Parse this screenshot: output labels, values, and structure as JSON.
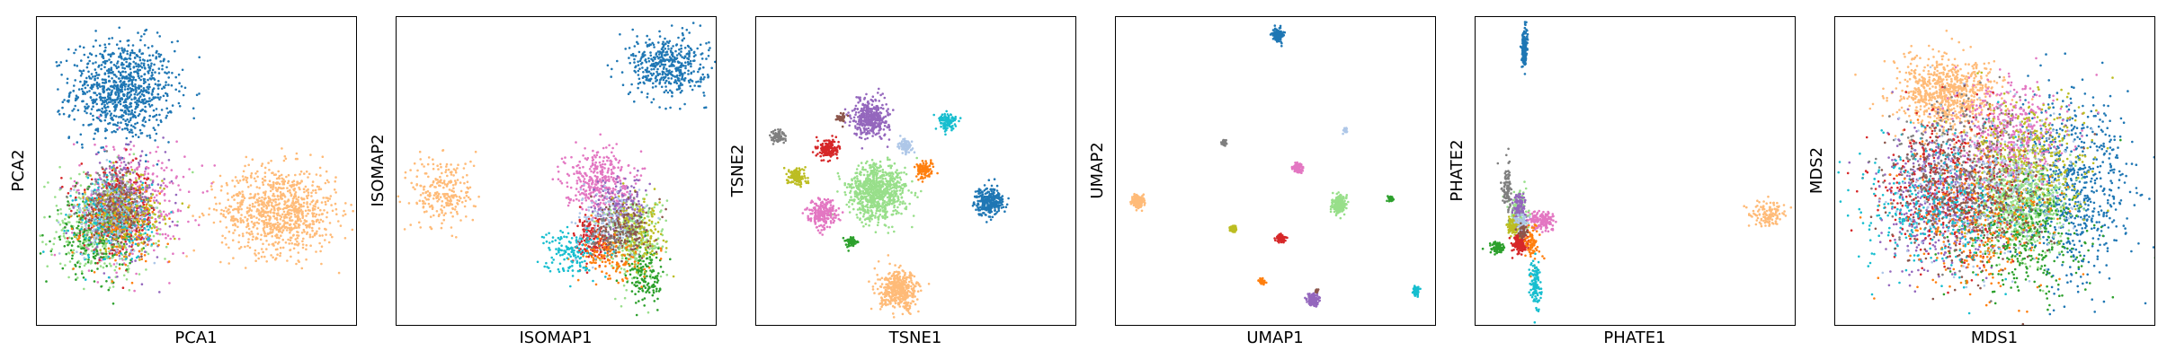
{
  "chart_data": [
    {
      "type": "scatter",
      "xlabel": "PCA1",
      "ylabel": "PCA2",
      "grid": false,
      "xticks": "none",
      "yticks": "none",
      "clusters": [
        {
          "color": "#1f77b4",
          "x": 0.27,
          "y": 0.76,
          "sx": 0.08,
          "sy": 0.08,
          "n": 900
        },
        {
          "color": "#ffbb78",
          "x": 0.76,
          "y": 0.37,
          "sx": 0.09,
          "sy": 0.07,
          "n": 900
        },
        {
          "color": "#e377c2",
          "x": 0.3,
          "y": 0.4,
          "sx": 0.09,
          "sy": 0.1,
          "n": 350
        },
        {
          "color": "#98df8a",
          "x": 0.2,
          "y": 0.32,
          "sx": 0.08,
          "sy": 0.08,
          "n": 450
        },
        {
          "color": "#9467bd",
          "x": 0.27,
          "y": 0.38,
          "sx": 0.07,
          "sy": 0.08,
          "n": 300
        },
        {
          "color": "#d62728",
          "x": 0.26,
          "y": 0.36,
          "sx": 0.06,
          "sy": 0.07,
          "n": 250
        },
        {
          "color": "#2ca02c",
          "x": 0.18,
          "y": 0.28,
          "sx": 0.06,
          "sy": 0.06,
          "n": 200
        },
        {
          "color": "#ff7f0e",
          "x": 0.26,
          "y": 0.33,
          "sx": 0.06,
          "sy": 0.06,
          "n": 200
        },
        {
          "color": "#17becf",
          "x": 0.24,
          "y": 0.34,
          "sx": 0.06,
          "sy": 0.07,
          "n": 200
        },
        {
          "color": "#bcbd22",
          "x": 0.28,
          "y": 0.36,
          "sx": 0.06,
          "sy": 0.06,
          "n": 200
        },
        {
          "color": "#7f7f7f",
          "x": 0.25,
          "y": 0.4,
          "sx": 0.05,
          "sy": 0.06,
          "n": 150
        },
        {
          "color": "#aec7e8",
          "x": 0.23,
          "y": 0.35,
          "sx": 0.06,
          "sy": 0.06,
          "n": 150
        },
        {
          "color": "#8c564b",
          "x": 0.25,
          "y": 0.37,
          "sx": 0.05,
          "sy": 0.05,
          "n": 120
        }
      ]
    },
    {
      "type": "scatter",
      "xlabel": "ISOMAP1",
      "ylabel": "ISOMAP2",
      "grid": false,
      "xticks": "none",
      "yticks": "none",
      "clusters": [
        {
          "color": "#1f77b4",
          "x": 0.85,
          "y": 0.84,
          "sx": 0.06,
          "sy": 0.05,
          "n": 450
        },
        {
          "color": "#ffbb78",
          "x": 0.15,
          "y": 0.43,
          "sx": 0.05,
          "sy": 0.06,
          "n": 250
        },
        {
          "color": "#e377c2",
          "x": 0.63,
          "y": 0.47,
          "sx": 0.05,
          "sy": 0.05,
          "n": 350
        },
        {
          "color": "#98df8a",
          "x": 0.74,
          "y": 0.28,
          "sx": 0.05,
          "sy": 0.07,
          "n": 300
        },
        {
          "color": "#9467bd",
          "x": 0.7,
          "y": 0.38,
          "sx": 0.04,
          "sy": 0.05,
          "n": 150
        },
        {
          "color": "#d62728",
          "x": 0.62,
          "y": 0.28,
          "sx": 0.03,
          "sy": 0.04,
          "n": 150
        },
        {
          "color": "#2ca02c",
          "x": 0.78,
          "y": 0.16,
          "sx": 0.03,
          "sy": 0.05,
          "n": 150
        },
        {
          "color": "#ff7f0e",
          "x": 0.67,
          "y": 0.22,
          "sx": 0.05,
          "sy": 0.04,
          "n": 150
        },
        {
          "color": "#17becf",
          "x": 0.55,
          "y": 0.24,
          "sx": 0.04,
          "sy": 0.04,
          "n": 150
        },
        {
          "color": "#bcbd22",
          "x": 0.76,
          "y": 0.3,
          "sx": 0.04,
          "sy": 0.05,
          "n": 150
        },
        {
          "color": "#7f7f7f",
          "x": 0.68,
          "y": 0.3,
          "sx": 0.04,
          "sy": 0.04,
          "n": 120
        },
        {
          "color": "#aec7e8",
          "x": 0.66,
          "y": 0.34,
          "sx": 0.05,
          "sy": 0.05,
          "n": 120
        },
        {
          "color": "#8c564b",
          "x": 0.72,
          "y": 0.32,
          "sx": 0.04,
          "sy": 0.05,
          "n": 120
        }
      ]
    },
    {
      "type": "scatter",
      "xlabel": "TSNE1",
      "ylabel": "TSNE2",
      "grid": false,
      "xticks": "none",
      "yticks": "none",
      "clusters": [
        {
          "color": "#9467bd",
          "x": 0.36,
          "y": 0.67,
          "sx": 0.028,
          "sy": 0.03,
          "n": 400
        },
        {
          "color": "#98df8a",
          "x": 0.38,
          "y": 0.43,
          "sx": 0.045,
          "sy": 0.045,
          "n": 800
        },
        {
          "color": "#ffbb78",
          "x": 0.45,
          "y": 0.11,
          "sx": 0.03,
          "sy": 0.03,
          "n": 450
        },
        {
          "color": "#1f77b4",
          "x": 0.73,
          "y": 0.4,
          "sx": 0.022,
          "sy": 0.022,
          "n": 300
        },
        {
          "color": "#e377c2",
          "x": 0.21,
          "y": 0.36,
          "sx": 0.022,
          "sy": 0.022,
          "n": 250
        },
        {
          "color": "#d62728",
          "x": 0.23,
          "y": 0.57,
          "sx": 0.016,
          "sy": 0.016,
          "n": 150
        },
        {
          "color": "#bcbd22",
          "x": 0.13,
          "y": 0.48,
          "sx": 0.014,
          "sy": 0.014,
          "n": 120
        },
        {
          "color": "#17becf",
          "x": 0.6,
          "y": 0.66,
          "sx": 0.014,
          "sy": 0.014,
          "n": 120
        },
        {
          "color": "#ff7f0e",
          "x": 0.53,
          "y": 0.5,
          "sx": 0.013,
          "sy": 0.013,
          "n": 110
        },
        {
          "color": "#aec7e8",
          "x": 0.47,
          "y": 0.58,
          "sx": 0.011,
          "sy": 0.011,
          "n": 80
        },
        {
          "color": "#7f7f7f",
          "x": 0.07,
          "y": 0.61,
          "sx": 0.01,
          "sy": 0.01,
          "n": 80
        },
        {
          "color": "#2ca02c",
          "x": 0.3,
          "y": 0.27,
          "sx": 0.008,
          "sy": 0.008,
          "n": 60
        },
        {
          "color": "#8c564b",
          "x": 0.27,
          "y": 0.67,
          "sx": 0.007,
          "sy": 0.007,
          "n": 40
        }
      ]
    },
    {
      "type": "scatter",
      "xlabel": "UMAP1",
      "ylabel": "UMAP2",
      "grid": false,
      "xticks": "none",
      "yticks": "none",
      "clusters": [
        {
          "color": "#1f77b4",
          "x": 0.51,
          "y": 0.94,
          "sx": 0.008,
          "sy": 0.01,
          "n": 150
        },
        {
          "color": "#ffbb78",
          "x": 0.07,
          "y": 0.4,
          "sx": 0.009,
          "sy": 0.01,
          "n": 200
        },
        {
          "color": "#98df8a",
          "x": 0.7,
          "y": 0.39,
          "sx": 0.01,
          "sy": 0.013,
          "n": 250
        },
        {
          "color": "#e377c2",
          "x": 0.57,
          "y": 0.51,
          "sx": 0.007,
          "sy": 0.008,
          "n": 120
        },
        {
          "color": "#9467bd",
          "x": 0.62,
          "y": 0.08,
          "sx": 0.009,
          "sy": 0.01,
          "n": 150
        },
        {
          "color": "#17becf",
          "x": 0.94,
          "y": 0.11,
          "sx": 0.005,
          "sy": 0.006,
          "n": 80
        },
        {
          "color": "#d62728",
          "x": 0.52,
          "y": 0.28,
          "sx": 0.006,
          "sy": 0.006,
          "n": 80
        },
        {
          "color": "#bcbd22",
          "x": 0.37,
          "y": 0.31,
          "sx": 0.005,
          "sy": 0.005,
          "n": 60
        },
        {
          "color": "#ff7f0e",
          "x": 0.46,
          "y": 0.14,
          "sx": 0.005,
          "sy": 0.004,
          "n": 50
        },
        {
          "color": "#7f7f7f",
          "x": 0.34,
          "y": 0.59,
          "sx": 0.004,
          "sy": 0.004,
          "n": 40
        },
        {
          "color": "#aec7e8",
          "x": 0.72,
          "y": 0.63,
          "sx": 0.003,
          "sy": 0.004,
          "n": 30
        },
        {
          "color": "#2ca02c",
          "x": 0.86,
          "y": 0.41,
          "sx": 0.004,
          "sy": 0.004,
          "n": 40
        },
        {
          "color": "#8c564b",
          "x": 0.63,
          "y": 0.11,
          "sx": 0.003,
          "sy": 0.003,
          "n": 20
        }
      ]
    },
    {
      "type": "scatter",
      "xlabel": "PHATE1",
      "ylabel": "PHATE2",
      "grid": false,
      "xticks": "none",
      "yticks": "none",
      "clusters": [
        {
          "color": "#1f77b4",
          "x": 0.155,
          "y": 0.9,
          "sx": 0.004,
          "sy": 0.03,
          "n": 200
        },
        {
          "color": "#ffbb78",
          "x": 0.92,
          "y": 0.36,
          "sx": 0.03,
          "sy": 0.02,
          "n": 120
        },
        {
          "color": "#e377c2",
          "x": 0.21,
          "y": 0.34,
          "sx": 0.02,
          "sy": 0.015,
          "n": 150
        },
        {
          "color": "#98df8a",
          "x": 0.14,
          "y": 0.36,
          "sx": 0.014,
          "sy": 0.04,
          "n": 150
        },
        {
          "color": "#9467bd",
          "x": 0.14,
          "y": 0.38,
          "sx": 0.01,
          "sy": 0.025,
          "n": 100
        },
        {
          "color": "#7f7f7f",
          "x": 0.1,
          "y": 0.44,
          "sx": 0.008,
          "sy": 0.04,
          "n": 100
        },
        {
          "color": "#bcbd22",
          "x": 0.12,
          "y": 0.32,
          "sx": 0.01,
          "sy": 0.015,
          "n": 100
        },
        {
          "color": "#d62728",
          "x": 0.14,
          "y": 0.26,
          "sx": 0.012,
          "sy": 0.015,
          "n": 150
        },
        {
          "color": "#2ca02c",
          "x": 0.07,
          "y": 0.25,
          "sx": 0.012,
          "sy": 0.01,
          "n": 80
        },
        {
          "color": "#ff7f0e",
          "x": 0.18,
          "y": 0.26,
          "sx": 0.012,
          "sy": 0.03,
          "n": 80
        },
        {
          "color": "#17becf",
          "x": 0.19,
          "y": 0.13,
          "sx": 0.008,
          "sy": 0.04,
          "n": 120
        },
        {
          "color": "#aec7e8",
          "x": 0.15,
          "y": 0.33,
          "sx": 0.01,
          "sy": 0.015,
          "n": 60
        },
        {
          "color": "#8c564b",
          "x": 0.15,
          "y": 0.3,
          "sx": 0.008,
          "sy": 0.01,
          "n": 40
        }
      ]
    },
    {
      "type": "scatter",
      "xlabel": "MDS1",
      "ylabel": "MDS2",
      "grid": false,
      "xticks": "none",
      "yticks": "none",
      "clusters": [
        {
          "color": "#ffbb78",
          "x": 0.35,
          "y": 0.75,
          "sx": 0.08,
          "sy": 0.06,
          "n": 800
        },
        {
          "color": "#1f77b4",
          "x": 0.75,
          "y": 0.45,
          "sx": 0.09,
          "sy": 0.14,
          "n": 700
        },
        {
          "color": "#98df8a",
          "x": 0.58,
          "y": 0.4,
          "sx": 0.07,
          "sy": 0.08,
          "n": 700
        },
        {
          "color": "#9467bd",
          "x": 0.35,
          "y": 0.42,
          "sx": 0.1,
          "sy": 0.12,
          "n": 550
        },
        {
          "color": "#e377c2",
          "x": 0.55,
          "y": 0.62,
          "sx": 0.08,
          "sy": 0.08,
          "n": 450
        },
        {
          "color": "#d62728",
          "x": 0.35,
          "y": 0.45,
          "sx": 0.11,
          "sy": 0.12,
          "n": 400
        },
        {
          "color": "#2ca02c",
          "x": 0.58,
          "y": 0.28,
          "sx": 0.1,
          "sy": 0.1,
          "n": 350
        },
        {
          "color": "#ff7f0e",
          "x": 0.45,
          "y": 0.35,
          "sx": 0.12,
          "sy": 0.12,
          "n": 350
        },
        {
          "color": "#17becf",
          "x": 0.3,
          "y": 0.38,
          "sx": 0.12,
          "sy": 0.12,
          "n": 350
        },
        {
          "color": "#bcbd22",
          "x": 0.62,
          "y": 0.55,
          "sx": 0.1,
          "sy": 0.1,
          "n": 350
        },
        {
          "color": "#7f7f7f",
          "x": 0.4,
          "y": 0.5,
          "sx": 0.12,
          "sy": 0.12,
          "n": 300
        },
        {
          "color": "#aec7e8",
          "x": 0.48,
          "y": 0.45,
          "sx": 0.13,
          "sy": 0.13,
          "n": 300
        },
        {
          "color": "#8c564b",
          "x": 0.42,
          "y": 0.4,
          "sx": 0.12,
          "sy": 0.12,
          "n": 300
        }
      ]
    }
  ]
}
